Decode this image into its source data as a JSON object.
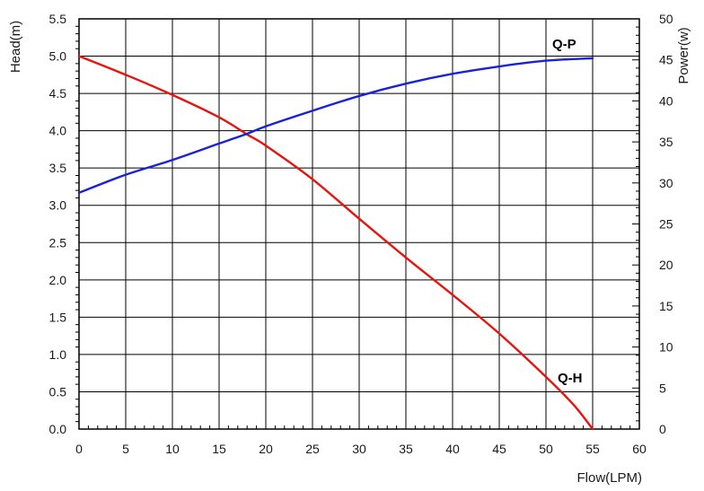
{
  "chart_data": {
    "type": "line",
    "title": "",
    "xlabel": "Flow(LPM)",
    "ylabel_left": "Head(m)",
    "ylabel_right": "Power(w)",
    "xlim": [
      0,
      60
    ],
    "ylim_left": [
      0,
      5.5
    ],
    "ylim_right": [
      0,
      50
    ],
    "x_ticks": [
      "0",
      "5",
      "10",
      "15",
      "20",
      "25",
      "30",
      "35",
      "40",
      "45",
      "50",
      "55",
      "60"
    ],
    "y_left_ticks": [
      "0.0",
      "0.5",
      "1.0",
      "1.5",
      "2.0",
      "2.5",
      "3.0",
      "3.5",
      "4.0",
      "4.5",
      "5.0",
      "5.5"
    ],
    "y_right_ticks": [
      "0",
      "5",
      "10",
      "15",
      "20",
      "25",
      "30",
      "35",
      "40",
      "45",
      "50"
    ],
    "grid": true,
    "series": [
      {
        "name": "Q-H",
        "axis": "left",
        "color": "#e8130d",
        "x": [
          0,
          5,
          10,
          15,
          18,
          20,
          25,
          30,
          35,
          40,
          45,
          50,
          53,
          55
        ],
        "y": [
          5.0,
          4.75,
          4.48,
          4.18,
          3.95,
          3.8,
          3.35,
          2.82,
          2.3,
          1.8,
          1.28,
          0.7,
          0.32,
          0.0
        ]
      },
      {
        "name": "Q-P",
        "axis": "right",
        "color": "#1a22d8",
        "x": [
          0,
          5,
          10,
          15,
          18,
          20,
          25,
          30,
          35,
          40,
          45,
          50,
          55
        ],
        "y": [
          28.8,
          31.0,
          32.8,
          34.8,
          36.0,
          36.9,
          38.8,
          40.6,
          42.1,
          43.3,
          44.2,
          44.9,
          45.2
        ]
      }
    ]
  }
}
